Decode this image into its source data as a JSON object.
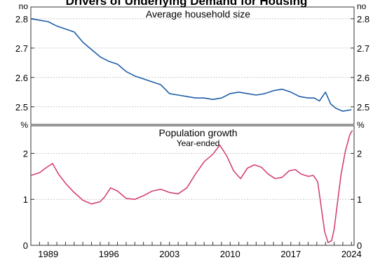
{
  "chart_data": [
    {
      "type": "line",
      "title": "Drivers of Underlying Demand for Housing",
      "panel_title": "Average household size",
      "subtitle": "",
      "y_unit_left": "no",
      "y_unit_right": "no",
      "ylim": [
        2.44,
        2.84
      ],
      "yticks": [
        "2.5",
        "2.6",
        "2.7",
        "2.8"
      ],
      "ytick_values": [
        2.5,
        2.6,
        2.7,
        2.8
      ],
      "xlim": [
        1987.0,
        2024.3
      ],
      "grid": true,
      "colors": {
        "line": "#1f5fa8"
      },
      "series": [
        {
          "x": [
            1987.0,
            1988.0,
            1989.0,
            1990.0,
            1991.0,
            1992.0,
            1993.0,
            1994.0,
            1995.0,
            1996.0,
            1997.0,
            1998.0,
            1999.0,
            2000.0,
            2001.0,
            2002.0,
            2003.0,
            2004.0,
            2005.0,
            2006.0,
            2007.0,
            2008.0,
            2009.0,
            2010.0,
            2011.0,
            2012.0,
            2013.0,
            2014.0,
            2015.0,
            2016.0,
            2017.0,
            2018.0,
            2019.0,
            2019.7,
            2020.3,
            2021.0,
            2021.6,
            2022.2,
            2023.0,
            2024.0
          ],
          "values": [
            2.8,
            2.795,
            2.79,
            2.775,
            2.765,
            2.755,
            2.72,
            2.695,
            2.67,
            2.655,
            2.645,
            2.62,
            2.605,
            2.595,
            2.585,
            2.575,
            2.545,
            2.54,
            2.535,
            2.53,
            2.53,
            2.525,
            2.53,
            2.545,
            2.55,
            2.545,
            2.54,
            2.545,
            2.555,
            2.56,
            2.55,
            2.535,
            2.53,
            2.53,
            2.52,
            2.55,
            2.51,
            2.495,
            2.485,
            2.49
          ]
        }
      ]
    },
    {
      "type": "line",
      "panel_title": "Population growth",
      "subtitle": "Year-ended",
      "y_unit_left": "%",
      "y_unit_right": "%",
      "ylim": [
        0,
        2.6
      ],
      "yticks": [
        "0",
        "1",
        "2"
      ],
      "ytick_values": [
        0,
        1,
        2
      ],
      "xlim": [
        1987.0,
        2024.3
      ],
      "xticks": [
        "1989",
        "1996",
        "2003",
        "2010",
        "2017",
        "2024"
      ],
      "xtick_values": [
        1989,
        1996,
        2003,
        2010,
        2017,
        2024
      ],
      "grid": true,
      "colors": {
        "line": "#d4427a"
      },
      "series": [
        {
          "x": [
            1987.0,
            1988.0,
            1988.7,
            1989.5,
            1990.2,
            1991.0,
            1992.0,
            1993.0,
            1994.0,
            1995.0,
            1995.5,
            1996.2,
            1997.0,
            1998.0,
            1999.0,
            2000.0,
            2001.0,
            2002.0,
            2003.0,
            2004.0,
            2005.0,
            2006.0,
            2007.0,
            2008.0,
            2008.8,
            2009.6,
            2010.4,
            2011.2,
            2012.0,
            2012.8,
            2013.6,
            2014.4,
            2015.2,
            2016.0,
            2016.8,
            2017.5,
            2018.2,
            2019.0,
            2019.6,
            2020.1,
            2020.5,
            2020.9,
            2021.3,
            2021.7,
            2022.0,
            2022.4,
            2022.8,
            2023.3,
            2023.8,
            2024.1
          ],
          "values": [
            1.52,
            1.58,
            1.68,
            1.78,
            1.55,
            1.35,
            1.15,
            0.98,
            0.9,
            0.95,
            1.05,
            1.25,
            1.18,
            1.02,
            1.0,
            1.08,
            1.18,
            1.22,
            1.15,
            1.12,
            1.25,
            1.55,
            1.82,
            1.98,
            2.18,
            1.95,
            1.62,
            1.45,
            1.68,
            1.75,
            1.7,
            1.55,
            1.45,
            1.48,
            1.62,
            1.65,
            1.55,
            1.5,
            1.52,
            1.38,
            0.85,
            0.3,
            0.06,
            0.1,
            0.35,
            0.95,
            1.55,
            2.05,
            2.4,
            2.5
          ]
        }
      ]
    }
  ]
}
